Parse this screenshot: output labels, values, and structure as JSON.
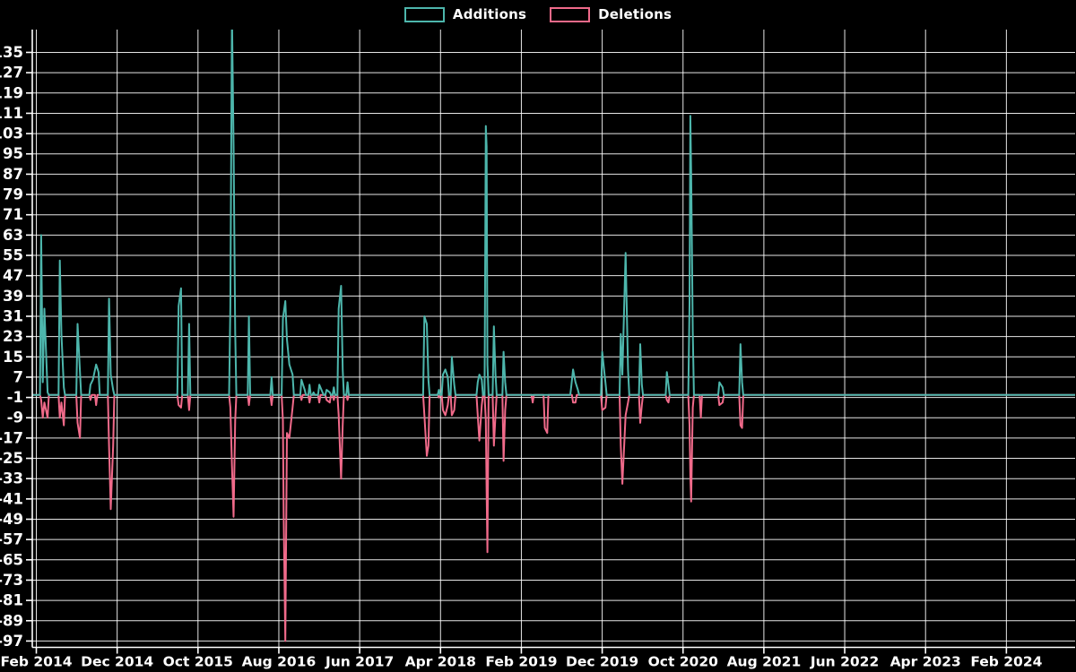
{
  "chart_data": {
    "type": "line",
    "title": "",
    "background_color": "#000000",
    "grid": true,
    "grid_color": "#ffffff",
    "axis_color": "#ffffff",
    "text_color": "#ffffff",
    "legend_position": "top-center",
    "legend": [
      {
        "label": "Additions",
        "color": "#4db6ac"
      },
      {
        "label": "Deletions",
        "color": "#f06a8a"
      }
    ],
    "x_axis": {
      "unit": "months since Feb 2014",
      "range": [
        -0.5,
        128.5
      ],
      "tick_positions": [
        0,
        10,
        20,
        30,
        40,
        50,
        60,
        70,
        80,
        90,
        100,
        110,
        120
      ],
      "tick_labels": [
        "Feb 2014",
        "Dec 2014",
        "Oct 2015",
        "Aug 2016",
        "Jun 2017",
        "Apr 2018",
        "Feb 2019",
        "Dec 2019",
        "Oct 2020",
        "Aug 2021",
        "Jun 2022",
        "Apr 2023",
        "Feb 2024"
      ]
    },
    "y_axis": {
      "range": [
        -99.5,
        144
      ],
      "ticks": [
        135,
        127,
        119,
        111,
        103,
        95,
        87,
        79,
        71,
        63,
        55,
        47,
        39,
        31,
        23,
        15,
        7,
        -1,
        -9,
        -17,
        -25,
        -33,
        -41,
        -49,
        -57,
        -65,
        -73,
        -81,
        -89,
        -97
      ]
    },
    "series": [
      {
        "name": "Additions",
        "color": "#4db6ac",
        "points": [
          [
            0.6,
            63
          ],
          [
            0.8,
            5
          ],
          [
            1.0,
            34
          ],
          [
            1.4,
            1
          ],
          [
            2.9,
            53
          ],
          [
            3.1,
            24
          ],
          [
            3.4,
            3
          ],
          [
            5.1,
            28
          ],
          [
            5.4,
            9
          ],
          [
            6.7,
            4
          ],
          [
            7.0,
            6
          ],
          [
            7.4,
            12
          ],
          [
            7.7,
            9
          ],
          [
            9.0,
            38
          ],
          [
            9.2,
            8
          ],
          [
            9.5,
            2
          ],
          [
            17.6,
            35
          ],
          [
            17.9,
            42
          ],
          [
            18.9,
            28
          ],
          [
            24.0,
            35
          ],
          [
            24.2,
            150
          ],
          [
            24.4,
            98
          ],
          [
            24.6,
            25
          ],
          [
            26.3,
            31
          ],
          [
            29.1,
            7
          ],
          [
            30.5,
            30
          ],
          [
            30.8,
            37
          ],
          [
            31.0,
            22
          ],
          [
            31.3,
            12
          ],
          [
            31.7,
            8
          ],
          [
            32.8,
            6
          ],
          [
            33.2,
            2
          ],
          [
            33.8,
            4
          ],
          [
            34.3,
            1
          ],
          [
            35.0,
            4
          ],
          [
            35.4,
            1
          ],
          [
            35.9,
            2
          ],
          [
            36.3,
            1
          ],
          [
            36.8,
            3
          ],
          [
            37.4,
            34
          ],
          [
            37.7,
            43
          ],
          [
            37.9,
            10
          ],
          [
            38.5,
            5
          ],
          [
            48.0,
            31
          ],
          [
            48.3,
            28
          ],
          [
            48.5,
            6
          ],
          [
            49.8,
            2
          ],
          [
            50.3,
            8
          ],
          [
            50.6,
            10
          ],
          [
            50.9,
            7
          ],
          [
            51.4,
            15
          ],
          [
            51.7,
            4
          ],
          [
            54.6,
            5
          ],
          [
            54.8,
            8
          ],
          [
            55.1,
            6
          ],
          [
            55.6,
            106
          ],
          [
            55.7,
            98
          ],
          [
            55.8,
            12
          ],
          [
            56.6,
            27
          ],
          [
            56.8,
            8
          ],
          [
            57.8,
            17
          ],
          [
            58.0,
            5
          ],
          [
            66.2,
            4
          ],
          [
            66.4,
            10
          ],
          [
            66.7,
            5
          ],
          [
            67.0,
            2
          ],
          [
            70.0,
            17
          ],
          [
            70.4,
            5
          ],
          [
            72.3,
            24
          ],
          [
            72.5,
            8
          ],
          [
            72.9,
            56
          ],
          [
            73.2,
            10
          ],
          [
            74.7,
            20
          ],
          [
            74.9,
            4
          ],
          [
            78.0,
            9
          ],
          [
            78.2,
            4
          ],
          [
            80.8,
            36
          ],
          [
            80.9,
            110
          ],
          [
            81.0,
            88
          ],
          [
            81.2,
            25
          ],
          [
            84.5,
            5
          ],
          [
            84.9,
            3
          ],
          [
            87.1,
            20
          ],
          [
            87.3,
            5
          ]
        ]
      },
      {
        "name": "Deletions",
        "color": "#f06a8a",
        "points": [
          [
            0.6,
            -2
          ],
          [
            0.8,
            -9
          ],
          [
            1.0,
            -3
          ],
          [
            1.4,
            -9
          ],
          [
            2.9,
            -9
          ],
          [
            3.1,
            -3
          ],
          [
            3.4,
            -12
          ],
          [
            5.1,
            -11
          ],
          [
            5.4,
            -17
          ],
          [
            6.7,
            -2
          ],
          [
            7.4,
            -4
          ],
          [
            9.0,
            -20
          ],
          [
            9.2,
            -45
          ],
          [
            9.5,
            -20
          ],
          [
            17.6,
            -4
          ],
          [
            17.9,
            -5
          ],
          [
            18.9,
            -6
          ],
          [
            24.0,
            -5
          ],
          [
            24.2,
            -28
          ],
          [
            24.4,
            -48
          ],
          [
            24.6,
            -10
          ],
          [
            26.3,
            -4
          ],
          [
            29.1,
            -4
          ],
          [
            30.5,
            -10
          ],
          [
            30.6,
            -48
          ],
          [
            30.8,
            -97
          ],
          [
            31.0,
            -15
          ],
          [
            31.3,
            -17
          ],
          [
            31.7,
            -5
          ],
          [
            32.8,
            -2
          ],
          [
            33.8,
            -3
          ],
          [
            35.0,
            -3
          ],
          [
            35.9,
            -2
          ],
          [
            36.3,
            -3
          ],
          [
            36.8,
            -2
          ],
          [
            37.4,
            -8
          ],
          [
            37.7,
            -33
          ],
          [
            37.9,
            -12
          ],
          [
            38.5,
            -2
          ],
          [
            48.0,
            -8
          ],
          [
            48.3,
            -24
          ],
          [
            48.5,
            -20
          ],
          [
            49.8,
            -1
          ],
          [
            50.3,
            -6
          ],
          [
            50.6,
            -8
          ],
          [
            50.9,
            -4
          ],
          [
            51.4,
            -8
          ],
          [
            51.7,
            -6
          ],
          [
            54.6,
            -8
          ],
          [
            54.8,
            -18
          ],
          [
            55.1,
            -4
          ],
          [
            55.6,
            -10
          ],
          [
            55.7,
            -38
          ],
          [
            55.8,
            -62
          ],
          [
            56.6,
            -20
          ],
          [
            56.8,
            -8
          ],
          [
            57.8,
            -26
          ],
          [
            58.0,
            -6
          ],
          [
            61.4,
            -3
          ],
          [
            62.9,
            -13
          ],
          [
            63.2,
            -15
          ],
          [
            66.4,
            -3
          ],
          [
            66.7,
            -3
          ],
          [
            70.0,
            -6
          ],
          [
            70.4,
            -5
          ],
          [
            72.3,
            -20
          ],
          [
            72.5,
            -35
          ],
          [
            72.9,
            -8
          ],
          [
            73.2,
            -3
          ],
          [
            74.7,
            -11
          ],
          [
            74.9,
            -4
          ],
          [
            78.0,
            -2
          ],
          [
            78.2,
            -3
          ],
          [
            80.8,
            -12
          ],
          [
            80.9,
            -32
          ],
          [
            81.0,
            -42
          ],
          [
            81.2,
            -5
          ],
          [
            82.2,
            -9
          ],
          [
            84.5,
            -4
          ],
          [
            84.9,
            -3
          ],
          [
            87.1,
            -12
          ],
          [
            87.3,
            -13
          ]
        ]
      }
    ]
  }
}
